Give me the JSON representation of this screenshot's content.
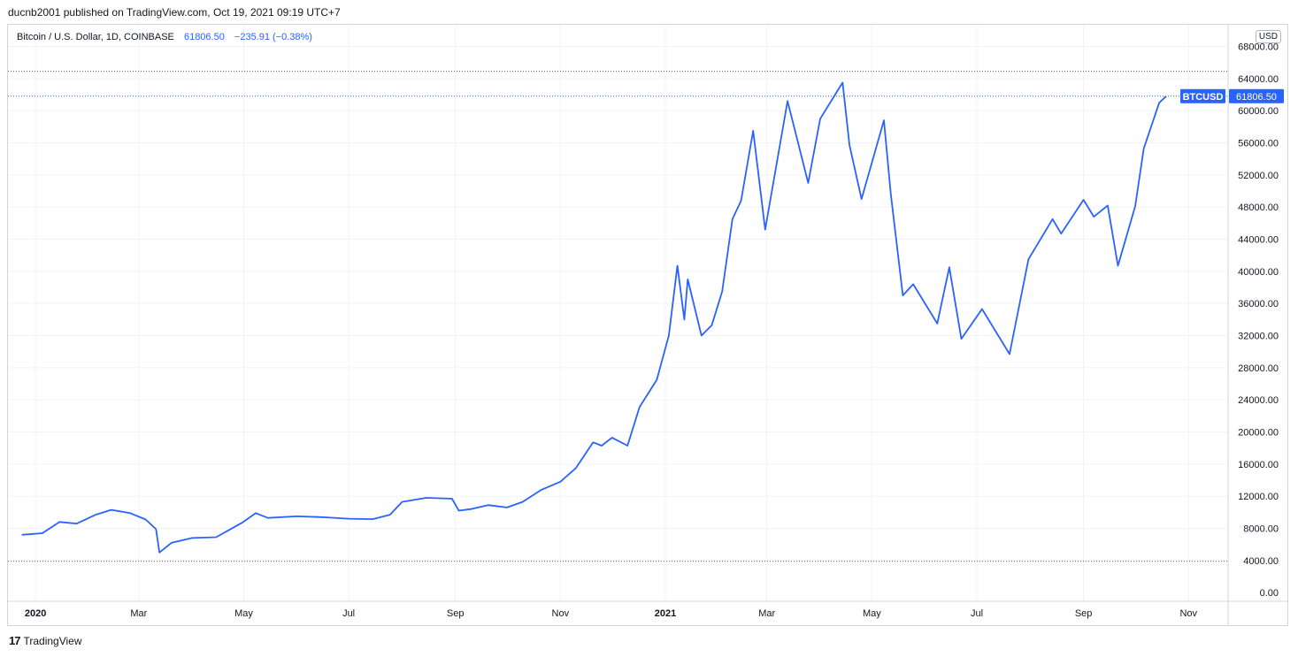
{
  "publisher_line": "ducnb2001 published on TradingView.com, Oct 19, 2021 09:19 UTC+7",
  "legend": {
    "symbol": "Bitcoin / U.S. Dollar, 1D, COINBASE",
    "last": "61806.50",
    "change": "−235.91 (−0.38%)"
  },
  "currency": "USD",
  "price_label": {
    "ticker": "BTCUSD",
    "value": "61806.50"
  },
  "brand": {
    "logo": "17",
    "name": "TradingView"
  },
  "colors": {
    "line": "#2962ff",
    "grid": "#f0f3fa",
    "axis_text": "#131722",
    "badge": "#2962ff"
  },
  "chart_data": {
    "type": "line",
    "series": [
      {
        "name": "BTCUSD",
        "x": [
          "2019-12-24",
          "2020-01-05",
          "2020-01-15",
          "2020-01-25",
          "2020-02-05",
          "2020-02-14",
          "2020-02-25",
          "2020-03-05",
          "2020-03-11",
          "2020-03-13",
          "2020-03-20",
          "2020-04-01",
          "2020-04-15",
          "2020-04-30",
          "2020-05-08",
          "2020-05-15",
          "2020-06-01",
          "2020-06-15",
          "2020-07-01",
          "2020-07-15",
          "2020-07-25",
          "2020-08-01",
          "2020-08-15",
          "2020-08-30",
          "2020-09-03",
          "2020-09-10",
          "2020-09-20",
          "2020-10-01",
          "2020-10-10",
          "2020-10-21",
          "2020-11-01",
          "2020-11-10",
          "2020-11-20",
          "2020-11-25",
          "2020-12-01",
          "2020-12-10",
          "2020-12-17",
          "2020-12-27",
          "2021-01-03",
          "2021-01-08",
          "2021-01-12",
          "2021-01-14",
          "2021-01-22",
          "2021-01-28",
          "2021-02-03",
          "2021-02-09",
          "2021-02-14",
          "2021-02-21",
          "2021-02-28",
          "2021-03-13",
          "2021-03-25",
          "2021-04-01",
          "2021-04-14",
          "2021-04-18",
          "2021-04-25",
          "2021-05-08",
          "2021-05-12",
          "2021-05-19",
          "2021-05-25",
          "2021-06-08",
          "2021-06-15",
          "2021-06-22",
          "2021-07-04",
          "2021-07-20",
          "2021-07-31",
          "2021-08-14",
          "2021-08-19",
          "2021-09-01",
          "2021-09-07",
          "2021-09-15",
          "2021-09-21",
          "2021-10-01",
          "2021-10-06",
          "2021-10-15",
          "2021-10-19"
        ],
        "y": [
          7200,
          7400,
          8800,
          8600,
          9700,
          10300,
          9900,
          9100,
          7900,
          5000,
          6200,
          6800,
          6900,
          8700,
          9900,
          9300,
          9500,
          9400,
          9200,
          9150,
          9700,
          11300,
          11800,
          11700,
          10200,
          10400,
          10900,
          10600,
          11300,
          12800,
          13800,
          15500,
          18700,
          18300,
          19300,
          18300,
          23100,
          26500,
          32000,
          40700,
          34000,
          39000,
          32000,
          33300,
          37500,
          46500,
          48800,
          57500,
          45200,
          61200,
          51000,
          59000,
          63500,
          55700,
          49000,
          58800,
          49600,
          37000,
          38400,
          33500,
          40500,
          31600,
          35300,
          29700,
          41500,
          46500,
          44700,
          48900,
          46800,
          48200,
          40700,
          48100,
          55300,
          61000,
          61806.5
        ]
      }
    ],
    "ylim": [
      0,
      68000
    ],
    "y_ticks": [
      "0.00",
      "4000.00",
      "8000.00",
      "12000.00",
      "16000.00",
      "20000.00",
      "24000.00",
      "28000.00",
      "32000.00",
      "36000.00",
      "40000.00",
      "44000.00",
      "48000.00",
      "52000.00",
      "56000.00",
      "60000.00",
      "64000.00",
      "68000.00"
    ],
    "x_ticks": [
      {
        "label": "2020",
        "date": "2020-01-01",
        "bold": true
      },
      {
        "label": "Mar",
        "date": "2020-03-01"
      },
      {
        "label": "May",
        "date": "2020-05-01"
      },
      {
        "label": "Jul",
        "date": "2020-07-01"
      },
      {
        "label": "Sep",
        "date": "2020-09-01"
      },
      {
        "label": "Nov",
        "date": "2020-11-01"
      },
      {
        "label": "2021",
        "date": "2021-01-01",
        "bold": true
      },
      {
        "label": "Mar",
        "date": "2021-03-01"
      },
      {
        "label": "May",
        "date": "2021-05-01"
      },
      {
        "label": "Jul",
        "date": "2021-07-01"
      },
      {
        "label": "Sep",
        "date": "2021-09-01"
      },
      {
        "label": "Nov",
        "date": "2021-11-01"
      }
    ],
    "xlim": [
      "2019-12-16",
      "2021-11-24"
    ],
    "hlines": [
      64900,
      61806.5,
      3900
    ],
    "grid": true,
    "last_value": 61806.5
  }
}
